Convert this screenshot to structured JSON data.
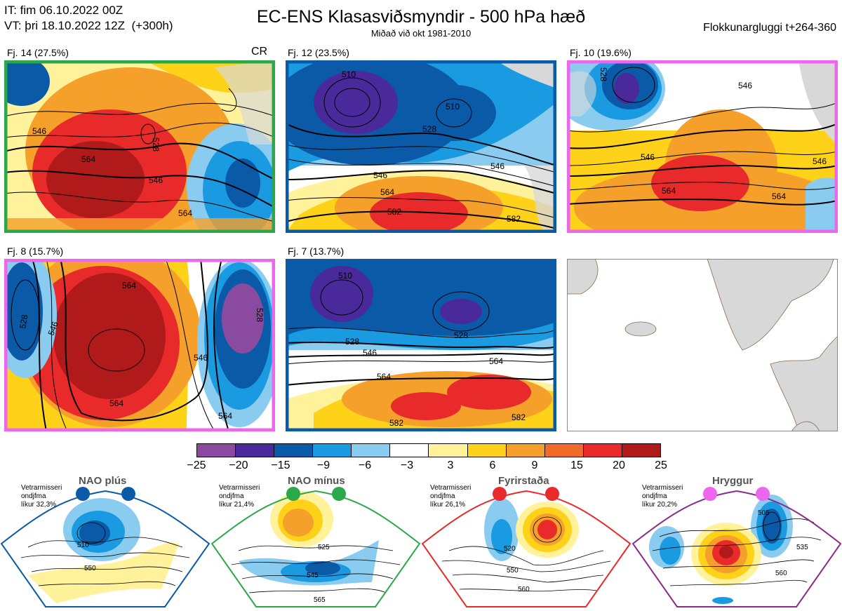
{
  "header": {
    "init_line": "IT: fim 06.10.2022 00Z",
    "valid_line": "VT: þri 18.10.2022 12Z  (+300h)",
    "title": "EC-ENS Klasasviðsmyndir - 500 hPa hæð",
    "subtitle": "Miðað við okt 1981-2010",
    "window": "Flokkunargluggi t+264-360"
  },
  "colors": {
    "green": "#2aa84a",
    "blue": "#0a5aa8",
    "pink": "#ee66ee",
    "red": "#e82a2a",
    "purple": "#8a2a8a"
  },
  "panels": [
    {
      "label": "Fj. 14 (27.5%)",
      "regime": "nao-minus",
      "extra": "CR",
      "contours": [
        {
          "text": "546"
        },
        {
          "text": "564"
        },
        {
          "text": "528"
        },
        {
          "text": "546"
        },
        {
          "text": "564"
        }
      ]
    },
    {
      "label": "Fj. 12 (23.5%)",
      "regime": "nao-plus",
      "contours": [
        {
          "text": "510"
        },
        {
          "text": "510"
        },
        {
          "text": "528"
        },
        {
          "text": "546"
        },
        {
          "text": "564"
        },
        {
          "text": "582"
        },
        {
          "text": "546"
        },
        {
          "text": "582"
        }
      ]
    },
    {
      "label": "Fj. 10 (19.6%)",
      "regime": "hryggur",
      "contours": [
        {
          "text": "528"
        },
        {
          "text": "546"
        },
        {
          "text": "546"
        },
        {
          "text": "564"
        },
        {
          "text": "564"
        },
        {
          "text": "546"
        }
      ]
    },
    {
      "label": "Fj. 8 (15.7%)",
      "regime": "hryggur",
      "contours": [
        {
          "text": "564"
        },
        {
          "text": "546"
        },
        {
          "text": "528"
        },
        {
          "text": "546"
        },
        {
          "text": "564"
        },
        {
          "text": "564"
        },
        {
          "text": "528"
        }
      ]
    },
    {
      "label": "Fj. 7 (13.7%)",
      "regime": "nao-plus",
      "contours": [
        {
          "text": "510"
        },
        {
          "text": "528"
        },
        {
          "text": "528"
        },
        {
          "text": "546"
        },
        {
          "text": "564"
        },
        {
          "text": "564"
        },
        {
          "text": "582"
        },
        {
          "text": "582"
        }
      ]
    }
  ],
  "colorbar": {
    "colors": [
      "#8a4aa0",
      "#4a2a9a",
      "#0a5aa8",
      "#1a9ae0",
      "#8accf0",
      "#ffffff",
      "#fff29a",
      "#ffd21a",
      "#f5a02a",
      "#f06a2a",
      "#e82a2a",
      "#b01a1a"
    ],
    "ticks": [
      "−25",
      "−20",
      "−15",
      "−9",
      "−6",
      "−3",
      "3",
      "6",
      "9",
      "15",
      "20",
      "25"
    ]
  },
  "regimes": [
    {
      "name": "NAO plús",
      "info_1": "Vetrarmisseri",
      "info_2": "ondjfma",
      "info_3": "líkur 32,3%",
      "color": "#0a5aa8",
      "contours": [
        "510",
        "550"
      ]
    },
    {
      "name": "NAO mínus",
      "info_1": "Vetrarmisseri",
      "info_2": "ondjfma",
      "info_3": "líkur 21,4%",
      "color": "#2aa84a",
      "contours": [
        "525",
        "545",
        "565"
      ]
    },
    {
      "name": "Fyrirstaða",
      "info_1": "Vetrarmisseri",
      "info_2": "ondjfma",
      "info_3": "líkur 26,1%",
      "color": "#e82a2a",
      "contours": [
        "520",
        "550",
        "560"
      ]
    },
    {
      "name": "Hryggur",
      "info_1": "Vetrarmisseri",
      "info_2": "ondjfma",
      "info_3": "líkur 20,2%",
      "color": "#8a2a8a",
      "contours": [
        "505",
        "535",
        "560"
      ]
    }
  ]
}
